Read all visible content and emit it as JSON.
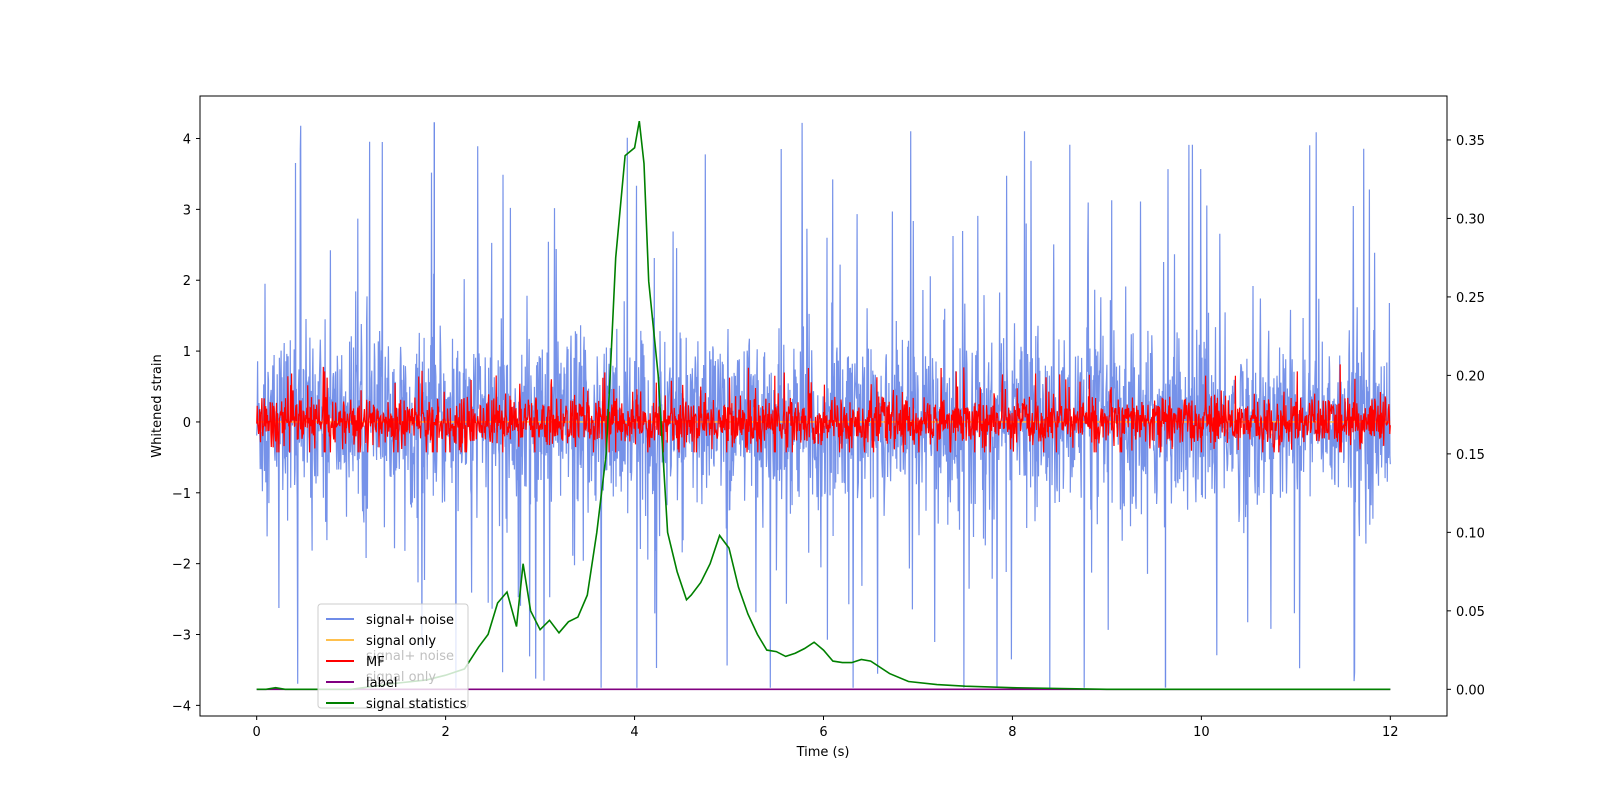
{
  "chart_data": {
    "type": "line",
    "title": "",
    "xlabel": "Time (s)",
    "ylabel": "Whitened strain",
    "ylabel_right": "",
    "xlim": [
      -0.6,
      12.6
    ],
    "ylim": [
      -4.15,
      4.6
    ],
    "ylim_right": [
      -0.017,
      0.378
    ],
    "x_ticks": [
      0,
      2,
      4,
      6,
      8,
      10,
      12
    ],
    "y_ticks": [
      -4,
      -3,
      -2,
      -1,
      0,
      1,
      2,
      3,
      4
    ],
    "y_ticks_right": [
      0.0,
      0.05,
      0.1,
      0.15,
      0.2,
      0.25,
      0.3,
      0.35
    ],
    "grid": false,
    "legend_position": "lower-left",
    "legend": [
      "signal+ noise",
      "signal only",
      "MF",
      "label",
      "signal statistics"
    ],
    "legend_ghost": [
      "signal+ noise",
      "signal only"
    ],
    "series": [
      {
        "name": "signal+ noise",
        "color": "#6f8ce8",
        "axis": "left",
        "kind": "noise",
        "x_range": [
          0,
          12
        ],
        "baseline": 0.0,
        "typical_range": [
          -1.6,
          1.6
        ],
        "max": 4.23,
        "min": -3.75
      },
      {
        "name": "signal only",
        "color": "#ffc04d",
        "axis": "left",
        "kind": "flat",
        "x_range": [
          0,
          12
        ],
        "value": 0.0
      },
      {
        "name": "MF",
        "color": "#ff0000",
        "axis": "left",
        "kind": "noise",
        "x_range": [
          0,
          12
        ],
        "baseline": 0.0,
        "typical_range": [
          -0.38,
          0.55
        ],
        "max": 0.85,
        "min": -0.43
      },
      {
        "name": "label",
        "color": "#800080",
        "axis": "right",
        "kind": "flat",
        "x_range": [
          0,
          12
        ],
        "value": 0.0
      },
      {
        "name": "signal statistics",
        "color": "#008000",
        "axis": "right",
        "x": [
          0,
          0.1,
          0.2,
          0.3,
          0.5,
          1.0,
          1.5,
          1.8,
          2.0,
          2.2,
          2.35,
          2.45,
          2.55,
          2.65,
          2.75,
          2.82,
          2.9,
          3.0,
          3.1,
          3.2,
          3.3,
          3.4,
          3.5,
          3.6,
          3.7,
          3.75,
          3.8,
          3.9,
          4.0,
          4.05,
          4.1,
          4.15,
          4.25,
          4.35,
          4.45,
          4.55,
          4.6,
          4.7,
          4.8,
          4.9,
          5.0,
          5.1,
          5.2,
          5.3,
          5.4,
          5.5,
          5.6,
          5.7,
          5.8,
          5.9,
          6.0,
          6.1,
          6.2,
          6.3,
          6.4,
          6.5,
          6.7,
          6.9,
          7.2,
          7.5,
          8.0,
          9.0,
          10.0,
          11.0,
          12.0
        ],
        "y": [
          0.0,
          0.0,
          0.001,
          0.0,
          0.0,
          0.0,
          0.004,
          0.006,
          0.009,
          0.013,
          0.027,
          0.035,
          0.055,
          0.062,
          0.04,
          0.08,
          0.05,
          0.038,
          0.044,
          0.036,
          0.043,
          0.046,
          0.06,
          0.1,
          0.15,
          0.21,
          0.275,
          0.34,
          0.345,
          0.362,
          0.335,
          0.26,
          0.2,
          0.1,
          0.075,
          0.057,
          0.06,
          0.068,
          0.08,
          0.098,
          0.09,
          0.065,
          0.048,
          0.035,
          0.025,
          0.024,
          0.021,
          0.023,
          0.026,
          0.03,
          0.025,
          0.018,
          0.017,
          0.017,
          0.019,
          0.018,
          0.01,
          0.005,
          0.003,
          0.002,
          0.001,
          0.0,
          0.0,
          0.0,
          0.0
        ]
      }
    ]
  }
}
